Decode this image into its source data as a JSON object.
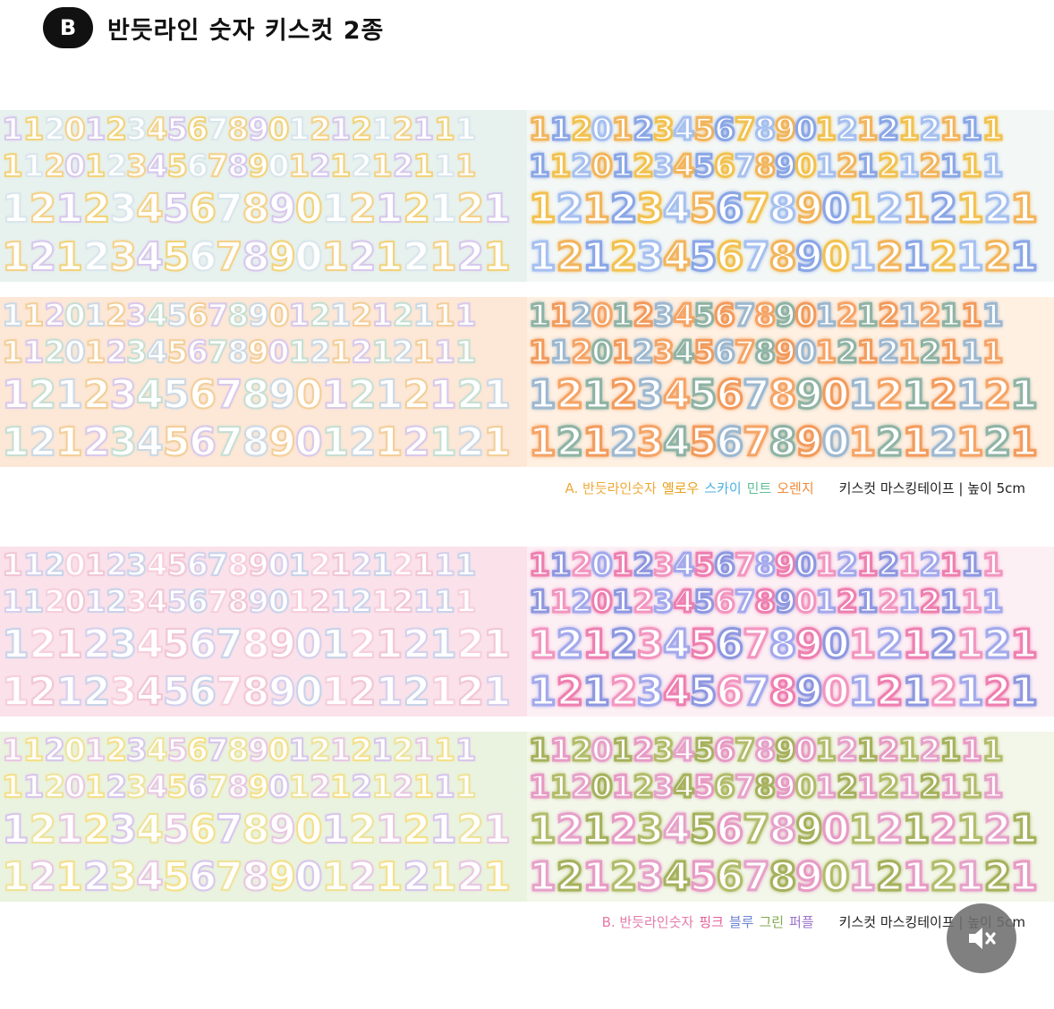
{
  "header": {
    "badge": "B",
    "title": "반듯라인 숫자 키스컷 2종"
  },
  "digit_rows": {
    "row1": "11201234567890121212111",
    "row2": "11201234567890121212111",
    "row3": "1212345678901212121",
    "row4": "1212345678901212121"
  },
  "tapes": [
    {
      "id": "tape-1",
      "bg_left": "#e7f1ee",
      "bg_right": "#f3f7f6",
      "palette_left": [
        "#d7c8ec",
        "#f2d37a",
        "#d9e6ec",
        "#f4d28a"
      ],
      "palette_right": [
        "#f2b55c",
        "#8aa6e6",
        "#f2c250",
        "#a6c0ef"
      ]
    },
    {
      "id": "tape-2",
      "bg_left": "#fde7d6",
      "bg_right": "#fff0e2",
      "palette_left": [
        "#cbd9e5",
        "#f2cf9a",
        "#d9c9ea",
        "#c6dfd3"
      ],
      "palette_right": [
        "#8fb3a4",
        "#f29b5c",
        "#9db8d0",
        "#f5a466"
      ]
    },
    {
      "id": "tape-3",
      "bg_left": "#fbe2ea",
      "bg_right": "#fdf0f4",
      "palette_left": [
        "#f1c6d6",
        "#d5d0ec",
        "#c9d3ea",
        "#f6cfdd"
      ],
      "palette_right": [
        "#ee7fb0",
        "#8e97e0",
        "#f296c0",
        "#a4a9ec"
      ]
    },
    {
      "id": "tape-4",
      "bg_left": "#eaf3df",
      "bg_right": "#f3f7ea",
      "palette_left": [
        "#e8c7e3",
        "#f4e08a",
        "#d8c6ec",
        "#efe39a"
      ],
      "palette_right": [
        "#a6b15c",
        "#e79bc4",
        "#b2bc6a",
        "#e6a2c9"
      ]
    }
  ],
  "caption_a": {
    "prefix": "A. 반듯라인숫자",
    "c1": "옐로우",
    "c2": "스카이",
    "c3": "민트",
    "c4": "오렌지",
    "info": "키스컷 마스킹테이프 | 높이 5cm"
  },
  "caption_b": {
    "prefix": "B. 반듯라인숫자",
    "c1": "핑크",
    "c2": "블루",
    "c3": "그린",
    "c4": "퍼플",
    "info": "키스컷 마스킹테이프 | 높이 5cm"
  },
  "colors": {
    "a_prefix": "#f0a93a",
    "a_c1": "#e9a21c",
    "a_c2": "#4ab1e0",
    "a_c3": "#5fbf9a",
    "a_c4": "#f28a3c",
    "b_prefix": "#e57aa8",
    "b_c1": "#e6609a",
    "b_c2": "#6c83d6",
    "b_c3": "#80a84c",
    "b_c4": "#9b74c7"
  },
  "mute_icon": "speaker-mute-icon"
}
